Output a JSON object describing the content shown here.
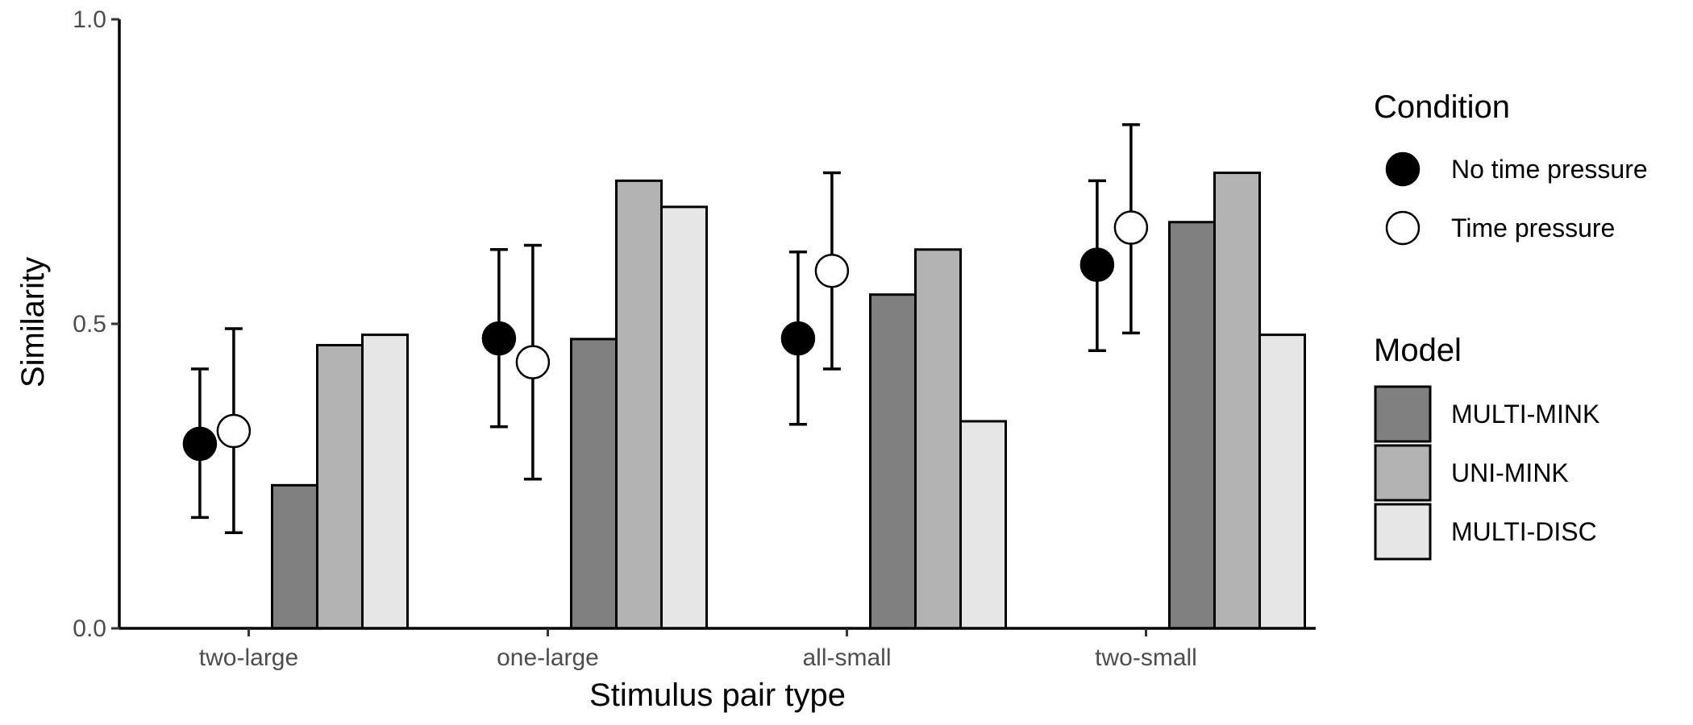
{
  "chart_data": {
    "type": "bar",
    "xlabel": "Stimulus pair type",
    "ylabel": "Similarity",
    "ylim": [
      0,
      1
    ],
    "yticks": [
      "0.0",
      "0.5",
      "1.0"
    ],
    "grid": false,
    "legend_placement": "right",
    "categories": [
      "two-large",
      "one-large",
      "all-small",
      "two-small"
    ],
    "series": [
      {
        "name": "MULTI-MINK",
        "color": "#808080",
        "values": [
          0.235,
          0.475,
          0.548,
          0.667
        ]
      },
      {
        "name": "UNI-MINK",
        "color": "#b3b3b3",
        "values": [
          0.465,
          0.735,
          0.622,
          0.748
        ]
      },
      {
        "name": "MULTI-DISC",
        "color": "#e6e6e6",
        "values": [
          0.482,
          0.692,
          0.34,
          0.482
        ]
      }
    ],
    "points": [
      {
        "name": "No time pressure",
        "fill": "#000000",
        "values": [
          0.303,
          0.476,
          0.476,
          0.597
        ],
        "lower": [
          0.182,
          0.331,
          0.335,
          0.456
        ],
        "upper": [
          0.426,
          0.622,
          0.618,
          0.735
        ]
      },
      {
        "name": "Time pressure",
        "fill": "#ffffff",
        "values": [
          0.324,
          0.437,
          0.587,
          0.658
        ],
        "lower": [
          0.157,
          0.245,
          0.426,
          0.485
        ],
        "upper": [
          0.492,
          0.629,
          0.748,
          0.827
        ]
      }
    ],
    "legend": {
      "condition_title": "Condition",
      "model_title": "Model"
    }
  }
}
